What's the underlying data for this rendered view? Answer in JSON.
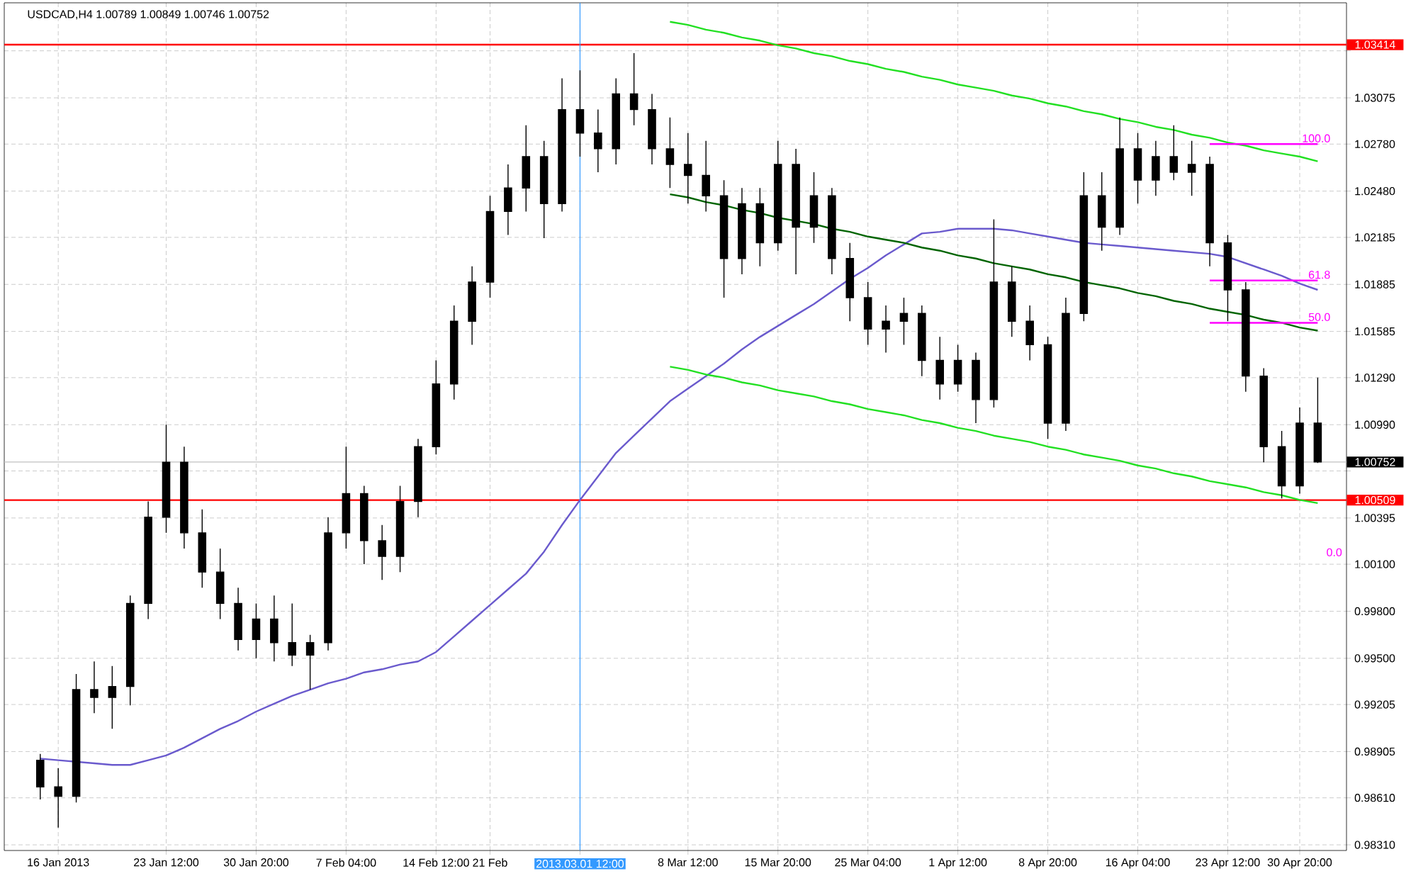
{
  "chart_data": {
    "type": "candlestick",
    "title": "USDCAD,H4  1.00789 1.00849 1.00746 1.00752",
    "grid": true,
    "ylim": [
      0.98274,
      1.03681
    ],
    "categories": [
      null,
      "16 Jan 2013",
      null,
      null,
      null,
      null,
      null,
      "23 Jan 12:00",
      null,
      null,
      null,
      null,
      "30 Jan 20:00",
      null,
      null,
      null,
      null,
      "7 Feb 04:00",
      null,
      null,
      null,
      null,
      "14 Feb 12:00",
      null,
      null,
      "21 Feb",
      null,
      null,
      null,
      null,
      "2013.03.01 12:00",
      null,
      null,
      null,
      null,
      null,
      "8 Mar 12:00",
      null,
      null,
      null,
      null,
      "15 Mar 20:00",
      null,
      null,
      null,
      null,
      "25 Mar 04:00",
      null,
      null,
      null,
      null,
      "1 Apr 12:00",
      null,
      null,
      null,
      null,
      "8 Apr 20:00",
      null,
      null,
      null,
      null,
      "16 Apr 04:00",
      null,
      null,
      null,
      null,
      "23 Apr 12:00",
      null,
      null,
      null,
      "30 Apr 20:00",
      null
    ],
    "yticks": [
      {
        "value": 0.9831,
        "label": "0.98310"
      },
      {
        "value": 0.9861,
        "label": "0.98610"
      },
      {
        "value": 0.98905,
        "label": "0.98905"
      },
      {
        "value": 0.99205,
        "label": "0.99205"
      },
      {
        "value": 0.995,
        "label": "0.99500"
      },
      {
        "value": 0.998,
        "label": "0.99800"
      },
      {
        "value": 1.001,
        "label": "1.00100"
      },
      {
        "value": 1.00395,
        "label": "1.00395"
      },
      {
        "value": 1.00695,
        "label": null
      },
      {
        "value": 1.0099,
        "label": "1.00990"
      },
      {
        "value": 1.0129,
        "label": "1.01290"
      },
      {
        "value": 1.01585,
        "label": "1.01585"
      },
      {
        "value": 1.01885,
        "label": "1.01885"
      },
      {
        "value": 1.02185,
        "label": "1.02185"
      },
      {
        "value": 1.0248,
        "label": "1.02480"
      },
      {
        "value": 1.0278,
        "label": "1.02780"
      },
      {
        "value": 1.03075,
        "label": "1.03075"
      },
      {
        "value": 1.03375,
        "label": null
      }
    ],
    "series": [
      {
        "type": "line",
        "color": "#6a5acd",
        "values": [
          0.9886,
          0.9885,
          0.9884,
          0.9883,
          0.9882,
          0.9882,
          0.9885,
          0.9888,
          0.9893,
          0.9899,
          0.9905,
          0.991,
          0.9916,
          0.9921,
          0.9926,
          0.993,
          0.9934,
          0.9937,
          0.9941,
          0.9943,
          0.9946,
          0.9948,
          0.9954,
          0.9964,
          0.9974,
          0.9984,
          0.9994,
          1.0004,
          1.0018,
          1.0035,
          1.0051,
          1.0066,
          1.0081,
          1.0092,
          1.0103,
          1.0114,
          1.0122,
          1.013,
          1.0138,
          1.0147,
          1.0155,
          1.0162,
          1.0169,
          1.0176,
          1.0184,
          1.0192,
          1.0199,
          1.0207,
          1.0214,
          1.0221,
          1.0222,
          1.0224,
          1.0224,
          1.0224,
          1.0223,
          1.0221,
          1.0219,
          1.0217,
          1.0215,
          1.0214,
          1.0213,
          1.0212,
          1.0211,
          1.021,
          1.0209,
          1.0208,
          1.0206,
          1.0202,
          1.0198,
          1.0194,
          1.0189,
          1.0185
        ]
      },
      {
        "type": "line",
        "color": "#22e022",
        "values": [
          null,
          null,
          null,
          null,
          null,
          null,
          null,
          null,
          null,
          null,
          null,
          null,
          null,
          null,
          null,
          null,
          null,
          null,
          null,
          null,
          null,
          null,
          null,
          null,
          null,
          null,
          null,
          null,
          null,
          null,
          null,
          null,
          null,
          null,
          null,
          1.0356,
          1.0354,
          1.0351,
          1.0349,
          1.0346,
          1.0344,
          1.0341,
          1.0339,
          1.0336,
          1.0334,
          1.0331,
          1.0329,
          1.0326,
          1.0324,
          1.0321,
          1.0319,
          1.0316,
          1.0314,
          1.0312,
          1.0309,
          1.0307,
          1.0304,
          1.0302,
          1.0299,
          1.0297,
          1.0294,
          1.0292,
          1.0289,
          1.0287,
          1.0284,
          1.0282,
          1.0279,
          1.0277,
          1.0274,
          1.0272,
          1.027,
          1.0267
        ]
      },
      {
        "type": "line",
        "color": "#006400",
        "values": [
          null,
          null,
          null,
          null,
          null,
          null,
          null,
          null,
          null,
          null,
          null,
          null,
          null,
          null,
          null,
          null,
          null,
          null,
          null,
          null,
          null,
          null,
          null,
          null,
          null,
          null,
          null,
          null,
          null,
          null,
          null,
          null,
          null,
          null,
          null,
          1.0246,
          1.0244,
          1.0241,
          1.0239,
          1.0236,
          1.0234,
          1.0231,
          1.0229,
          1.0227,
          1.0224,
          1.0222,
          1.0219,
          1.0217,
          1.0215,
          1.0212,
          1.021,
          1.0207,
          1.0205,
          1.0202,
          1.02,
          1.0198,
          1.0195,
          1.0193,
          1.019,
          1.0188,
          1.0186,
          1.0183,
          1.0181,
          1.0178,
          1.0176,
          1.0173,
          1.0171,
          1.0169,
          1.0166,
          1.0164,
          1.0161,
          1.0159
        ]
      },
      {
        "type": "line",
        "color": "#22e022",
        "values": [
          null,
          null,
          null,
          null,
          null,
          null,
          null,
          null,
          null,
          null,
          null,
          null,
          null,
          null,
          null,
          null,
          null,
          null,
          null,
          null,
          null,
          null,
          null,
          null,
          null,
          null,
          null,
          null,
          null,
          null,
          null,
          null,
          null,
          null,
          null,
          1.0136,
          1.0134,
          1.0131,
          1.0129,
          1.0126,
          1.0124,
          1.0121,
          1.0119,
          1.0117,
          1.0114,
          1.0112,
          1.0109,
          1.0107,
          1.0105,
          1.0102,
          1.01,
          1.0097,
          1.0095,
          1.0092,
          1.009,
          1.0088,
          1.0085,
          1.0083,
          1.008,
          1.0078,
          1.0076,
          1.0073,
          1.0071,
          1.0068,
          1.0066,
          1.0063,
          1.0061,
          1.0059,
          1.0056,
          1.0054,
          1.0051,
          1.0049
        ]
      },
      {
        "type": "line",
        "name": "100.0",
        "color": "#ff00ff",
        "values": [
          null,
          null,
          null,
          null,
          null,
          null,
          null,
          null,
          null,
          null,
          null,
          null,
          null,
          null,
          null,
          null,
          null,
          null,
          null,
          null,
          null,
          null,
          null,
          null,
          null,
          null,
          null,
          null,
          null,
          null,
          null,
          null,
          null,
          null,
          null,
          null,
          null,
          null,
          null,
          null,
          null,
          null,
          null,
          null,
          null,
          null,
          null,
          null,
          null,
          null,
          null,
          null,
          null,
          null,
          null,
          null,
          null,
          null,
          null,
          null,
          null,
          null,
          null,
          null,
          null,
          1.0278,
          1.0278,
          1.0278,
          1.0278,
          1.0278,
          1.0278,
          1.0278
        ]
      },
      {
        "type": "line",
        "name": "61.8",
        "color": "#ff00ff",
        "values": [
          null,
          null,
          null,
          null,
          null,
          null,
          null,
          null,
          null,
          null,
          null,
          null,
          null,
          null,
          null,
          null,
          null,
          null,
          null,
          null,
          null,
          null,
          null,
          null,
          null,
          null,
          null,
          null,
          null,
          null,
          null,
          null,
          null,
          null,
          null,
          null,
          null,
          null,
          null,
          null,
          null,
          null,
          null,
          null,
          null,
          null,
          null,
          null,
          null,
          null,
          null,
          null,
          null,
          null,
          null,
          null,
          null,
          null,
          null,
          null,
          null,
          null,
          null,
          null,
          null,
          1.0191,
          1.0191,
          1.0191,
          1.0191,
          1.0191,
          1.0191,
          1.0191
        ]
      },
      {
        "type": "line",
        "name": "50.0",
        "color": "#ff00ff",
        "values": [
          null,
          null,
          null,
          null,
          null,
          null,
          null,
          null,
          null,
          null,
          null,
          null,
          null,
          null,
          null,
          null,
          null,
          null,
          null,
          null,
          null,
          null,
          null,
          null,
          null,
          null,
          null,
          null,
          null,
          null,
          null,
          null,
          null,
          null,
          null,
          null,
          null,
          null,
          null,
          null,
          null,
          null,
          null,
          null,
          null,
          null,
          null,
          null,
          null,
          null,
          null,
          null,
          null,
          null,
          null,
          null,
          null,
          null,
          null,
          null,
          null,
          null,
          null,
          null,
          null,
          1.0164,
          1.0164,
          1.0164,
          1.0164,
          1.0164,
          1.0164,
          1.0164
        ]
      },
      {
        "color": "#000000",
        "ohlc": [
          [
            0.9885,
            0.9889,
            0.986,
            0.9868
          ],
          [
            0.9868,
            0.988,
            0.9842,
            0.9862
          ],
          [
            0.9862,
            0.994,
            0.9858,
            0.993
          ],
          [
            0.993,
            0.9948,
            0.9915,
            0.9925
          ],
          [
            0.9925,
            0.9945,
            0.9905,
            0.9932
          ],
          [
            0.9932,
            0.999,
            0.992,
            0.9985
          ],
          [
            0.9985,
            1.005,
            0.9975,
            1.004
          ],
          [
            1.004,
            1.0099,
            1.003,
            1.0075
          ],
          [
            1.0075,
            1.0085,
            1.002,
            1.003
          ],
          [
            1.003,
            1.0045,
            0.9995,
            1.0005
          ],
          [
            1.0005,
            1.002,
            0.9975,
            0.9985
          ],
          [
            0.9985,
            0.9995,
            0.9955,
            0.9962
          ],
          [
            0.9962,
            0.9985,
            0.995,
            0.9975
          ],
          [
            0.9975,
            0.999,
            0.9948,
            0.996
          ],
          [
            0.996,
            0.9985,
            0.9945,
            0.9952
          ],
          [
            0.9952,
            0.9965,
            0.993,
            0.996
          ],
          [
            0.996,
            1.004,
            0.9955,
            1.003
          ],
          [
            1.003,
            1.0085,
            1.002,
            1.0055
          ],
          [
            1.0055,
            1.006,
            1.001,
            1.0025
          ],
          [
            1.0025,
            1.0035,
            1.0,
            1.0015
          ],
          [
            1.0015,
            1.006,
            1.0005,
            1.005
          ],
          [
            1.005,
            1.009,
            1.004,
            1.0085
          ],
          [
            1.0085,
            1.014,
            1.008,
            1.0125
          ],
          [
            1.0125,
            1.0175,
            1.0115,
            1.0165
          ],
          [
            1.0165,
            1.02,
            1.015,
            1.019
          ],
          [
            1.019,
            1.0245,
            1.018,
            1.0235
          ],
          [
            1.0235,
            1.0265,
            1.022,
            1.025
          ],
          [
            1.025,
            1.029,
            1.0235,
            1.027
          ],
          [
            1.027,
            1.028,
            1.0218,
            1.024
          ],
          [
            1.024,
            1.032,
            1.0235,
            1.03
          ],
          [
            1.03,
            1.0325,
            1.027,
            1.0285
          ],
          [
            1.0285,
            1.03,
            1.026,
            1.0275
          ],
          [
            1.0275,
            1.032,
            1.0265,
            1.031
          ],
          [
            1.031,
            1.0336,
            1.029,
            1.03
          ],
          [
            1.03,
            1.031,
            1.0265,
            1.0275
          ],
          [
            1.0275,
            1.0295,
            1.025,
            1.0265
          ],
          [
            1.0265,
            1.0285,
            1.024,
            1.0258
          ],
          [
            1.0258,
            1.028,
            1.0235,
            1.0245
          ],
          [
            1.0245,
            1.0255,
            1.018,
            1.0205
          ],
          [
            1.0205,
            1.025,
            1.0195,
            1.024
          ],
          [
            1.024,
            1.025,
            1.02,
            1.0215
          ],
          [
            1.0215,
            1.028,
            1.021,
            1.0265
          ],
          [
            1.0265,
            1.0275,
            1.0195,
            1.0225
          ],
          [
            1.0225,
            1.026,
            1.0215,
            1.0245
          ],
          [
            1.0245,
            1.025,
            1.0195,
            1.0205
          ],
          [
            1.0205,
            1.0215,
            1.0165,
            1.018
          ],
          [
            1.018,
            1.019,
            1.015,
            1.016
          ],
          [
            1.016,
            1.0175,
            1.0145,
            1.0165
          ],
          [
            1.0165,
            1.018,
            1.015,
            1.017
          ],
          [
            1.017,
            1.0175,
            1.013,
            1.014
          ],
          [
            1.014,
            1.0155,
            1.0115,
            1.0125
          ],
          [
            1.0125,
            1.015,
            1.012,
            1.014
          ],
          [
            1.014,
            1.0145,
            1.01,
            1.0115
          ],
          [
            1.0115,
            1.023,
            1.011,
            1.019
          ],
          [
            1.019,
            1.02,
            1.0155,
            1.0165
          ],
          [
            1.0165,
            1.0175,
            1.014,
            1.015
          ],
          [
            1.015,
            1.0155,
            1.009,
            1.01
          ],
          [
            1.01,
            1.018,
            1.0095,
            1.017
          ],
          [
            1.017,
            1.026,
            1.0165,
            1.0245
          ],
          [
            1.0245,
            1.026,
            1.021,
            1.0225
          ],
          [
            1.0225,
            1.0295,
            1.022,
            1.0275
          ],
          [
            1.0275,
            1.0285,
            1.024,
            1.0255
          ],
          [
            1.0255,
            1.028,
            1.0245,
            1.027
          ],
          [
            1.027,
            1.029,
            1.0255,
            1.026
          ],
          [
            1.026,
            1.028,
            1.0245,
            1.0265
          ],
          [
            1.0265,
            1.027,
            1.02,
            1.0215
          ],
          [
            1.0215,
            1.022,
            1.0165,
            1.0185
          ],
          [
            1.0185,
            1.019,
            1.012,
            1.013
          ],
          [
            1.013,
            1.0135,
            1.0075,
            1.0085
          ],
          [
            1.0085,
            1.0095,
            1.0052,
            1.006
          ],
          [
            1.006,
            1.011,
            1.0055,
            1.01
          ],
          [
            1.01,
            1.0129,
            1.00746,
            1.00752
          ]
        ]
      }
    ],
    "ref_lines": [
      {
        "axis": "y",
        "value": 1.03414,
        "label": "1.03414",
        "color": "#ff0000"
      },
      {
        "axis": "y",
        "value": 1.00509,
        "label": "1.00509",
        "color": "#ff0000"
      },
      {
        "axis": "y",
        "value": 1.00752,
        "label": "1.00752",
        "color": "#c0c0c0"
      },
      {
        "axis": "x",
        "value": "2013.03.01 12:00",
        "color": "#3399ff"
      }
    ],
    "annotations": [
      "0.0"
    ]
  }
}
